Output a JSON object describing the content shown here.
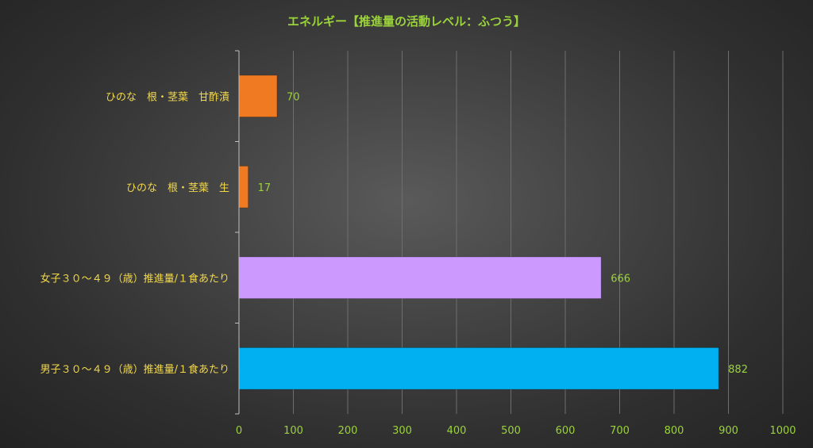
{
  "chart_data": {
    "type": "bar",
    "orientation": "horizontal",
    "title": "エネルギー【推進量の活動レベル：ふつう】",
    "categories": [
      "ひのな　根・茎葉　甘酢漬",
      "ひのな　根・茎葉　生",
      "女子３０～４９（歳）推進量/１食あたり",
      "男子３０～４９（歳）推進量/１食あたり"
    ],
    "values": [
      70,
      17,
      666,
      882
    ],
    "data_labels": [
      "70",
      "17",
      "666",
      "882"
    ],
    "bar_colors": [
      "#f07a22",
      "#f07a22",
      "#cc99ff",
      "#00b0f0"
    ],
    "xlim": [
      0,
      1000
    ],
    "x_ticks": [
      0,
      100,
      200,
      300,
      400,
      500,
      600,
      700,
      800,
      900,
      1000
    ],
    "x_tick_labels": [
      "0",
      "100",
      "200",
      "300",
      "400",
      "500",
      "600",
      "700",
      "800",
      "900",
      "1000"
    ],
    "grid": true,
    "legend": "none"
  },
  "colors": {
    "title": "#9bd33a",
    "category_label": "#f2d84b",
    "tick_label": "#9bd33a",
    "data_label": "#9bd33a"
  }
}
